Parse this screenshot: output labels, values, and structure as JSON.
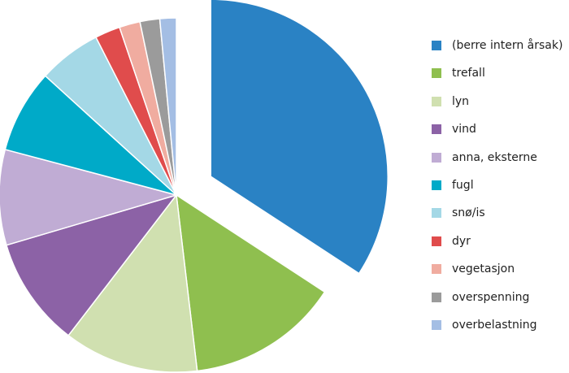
{
  "chart_data": {
    "type": "pie",
    "title": "",
    "legend_position": "right",
    "exploded": [
      "(berre intern årsak)"
    ],
    "slices": [
      {
        "label": "(berre intern årsak)",
        "value": 34.2,
        "color": "#2a82c4"
      },
      {
        "label": "trefall",
        "value": 13.9,
        "color": "#8fbf4f"
      },
      {
        "label": "lyn",
        "value": 12.3,
        "color": "#d0e0b0"
      },
      {
        "label": "vind",
        "value": 10.0,
        "color": "#8c62a6"
      },
      {
        "label": "anna, eksterne",
        "value": 8.7,
        "color": "#c0acd4"
      },
      {
        "label": "fugl",
        "value": 7.6,
        "color": "#00aac8"
      },
      {
        "label": "snø/is",
        "value": 5.75,
        "color": "#a4d8e6"
      },
      {
        "label": "dyr",
        "value": 2.3,
        "color": "#e04c4c"
      },
      {
        "label": "vegetasjon",
        "value": 1.9,
        "color": "#f0aca0"
      },
      {
        "label": "overspenning",
        "value": 1.8,
        "color": "#9b9b9b"
      },
      {
        "label": "overbelastning",
        "value": 1.5,
        "color": "#a4bee4"
      }
    ]
  }
}
